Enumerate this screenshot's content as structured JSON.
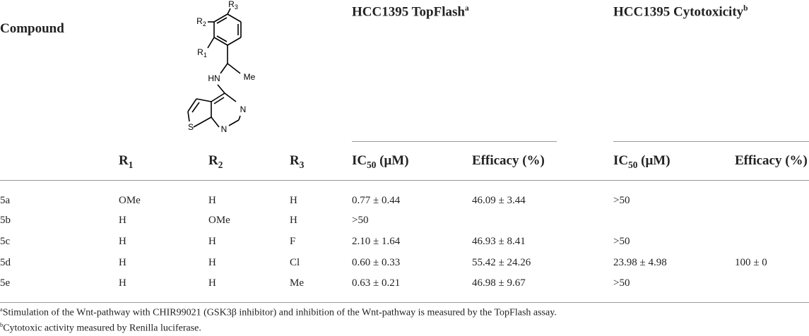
{
  "header": {
    "compound": "Compound",
    "topflash": {
      "text": "HCC1395 TopFlash",
      "sup": "a"
    },
    "cytotoxicity": {
      "text": "HCC1395 Cytotoxicity",
      "sup": "b"
    }
  },
  "structure": {
    "labels": [
      {
        "base": "R",
        "sub": "3"
      },
      {
        "base": "R",
        "sub": "2"
      },
      {
        "base": "R",
        "sub": "1"
      },
      {
        "base": "HN"
      },
      {
        "base": "Me"
      },
      {
        "base": "N"
      },
      {
        "base": "N"
      },
      {
        "base": "S"
      }
    ]
  },
  "table": {
    "columns": [
      {
        "base": "R",
        "sub": "1"
      },
      {
        "base": "R",
        "sub": "2"
      },
      {
        "base": "R",
        "sub": "3"
      },
      {
        "base": "IC",
        "sub": "50",
        "post": " (μM)"
      },
      {
        "base": "Efficacy (%)"
      },
      {
        "base": "IC",
        "sub": "50",
        "post": " (μM)"
      },
      {
        "base": "Efficacy (%)"
      }
    ],
    "rows": [
      [
        "5a",
        "OMe",
        "H",
        "H",
        "0.77 ± 0.44",
        "46.09 ± 3.44",
        ">50",
        null
      ],
      [
        "5b",
        "H",
        "OMe",
        "H",
        ">50",
        null,
        null,
        null
      ],
      [
        "5c",
        "H",
        "H",
        "F",
        "2.10 ± 1.64",
        "46.93 ± 8.41",
        ">50",
        null
      ],
      [
        "5d",
        "H",
        "H",
        "Cl",
        "0.60 ± 0.33",
        "55.42 ± 24.26",
        "23.98 ± 4.98",
        "100 ± 0"
      ],
      [
        "5e",
        "H",
        "H",
        "Me",
        "0.63 ± 0.21",
        "46.98 ± 9.67",
        ">50",
        null
      ]
    ]
  },
  "footnotes": [
    {
      "sup": "a",
      "text": "Stimulation of the Wnt-pathway with CHIR99021 (GSK3β inhibitor) and inhibition of the Wnt-pathway is measured by the TopFlash assay."
    },
    {
      "sup": "b",
      "text": "Cytotoxic activity measured by Renilla luciferase."
    }
  ]
}
